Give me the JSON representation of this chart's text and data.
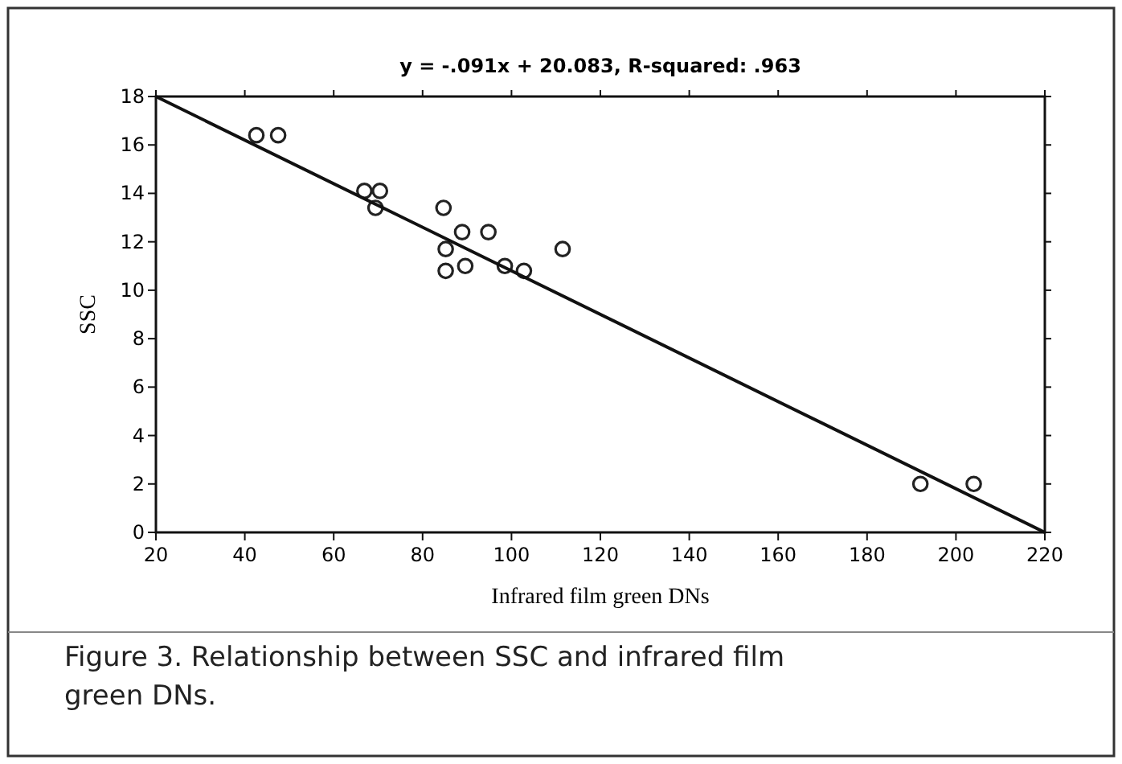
{
  "chart_data": {
    "type": "scatter",
    "title": "y  =  -.091x  +  20.083,  R-squared:  .963",
    "xlabel": "Infrared film green DNs",
    "ylabel": "SSC",
    "annotations": [
      "Figure 3. Relationship between SSC and infrared film green DNs."
    ],
    "xlim": [
      20,
      220
    ],
    "ylim": [
      0,
      18
    ],
    "xticks": [
      20,
      40,
      60,
      80,
      100,
      120,
      140,
      160,
      180,
      200,
      220
    ],
    "yticks": [
      0,
      2,
      4,
      6,
      8,
      10,
      12,
      14,
      16,
      18
    ],
    "grid": false,
    "series": [
      {
        "marker": "circle",
        "color": "#222222",
        "x": [
          42.6,
          47.5,
          66.9,
          70.4,
          69.4,
          84.7,
          85.2,
          85.2,
          88.9,
          89.6,
          94.8,
          98.5,
          102.8,
          111.5,
          192,
          204
        ],
        "values": [
          16.4,
          16.4,
          14.1,
          14.1,
          13.4,
          13.4,
          11.7,
          10.8,
          12.4,
          11,
          12.4,
          11,
          10.8,
          11.7,
          2,
          2
        ]
      },
      {
        "type": "line",
        "color": "#111111",
        "x": [
          20,
          220
        ],
        "values": [
          18,
          0
        ]
      }
    ]
  }
}
